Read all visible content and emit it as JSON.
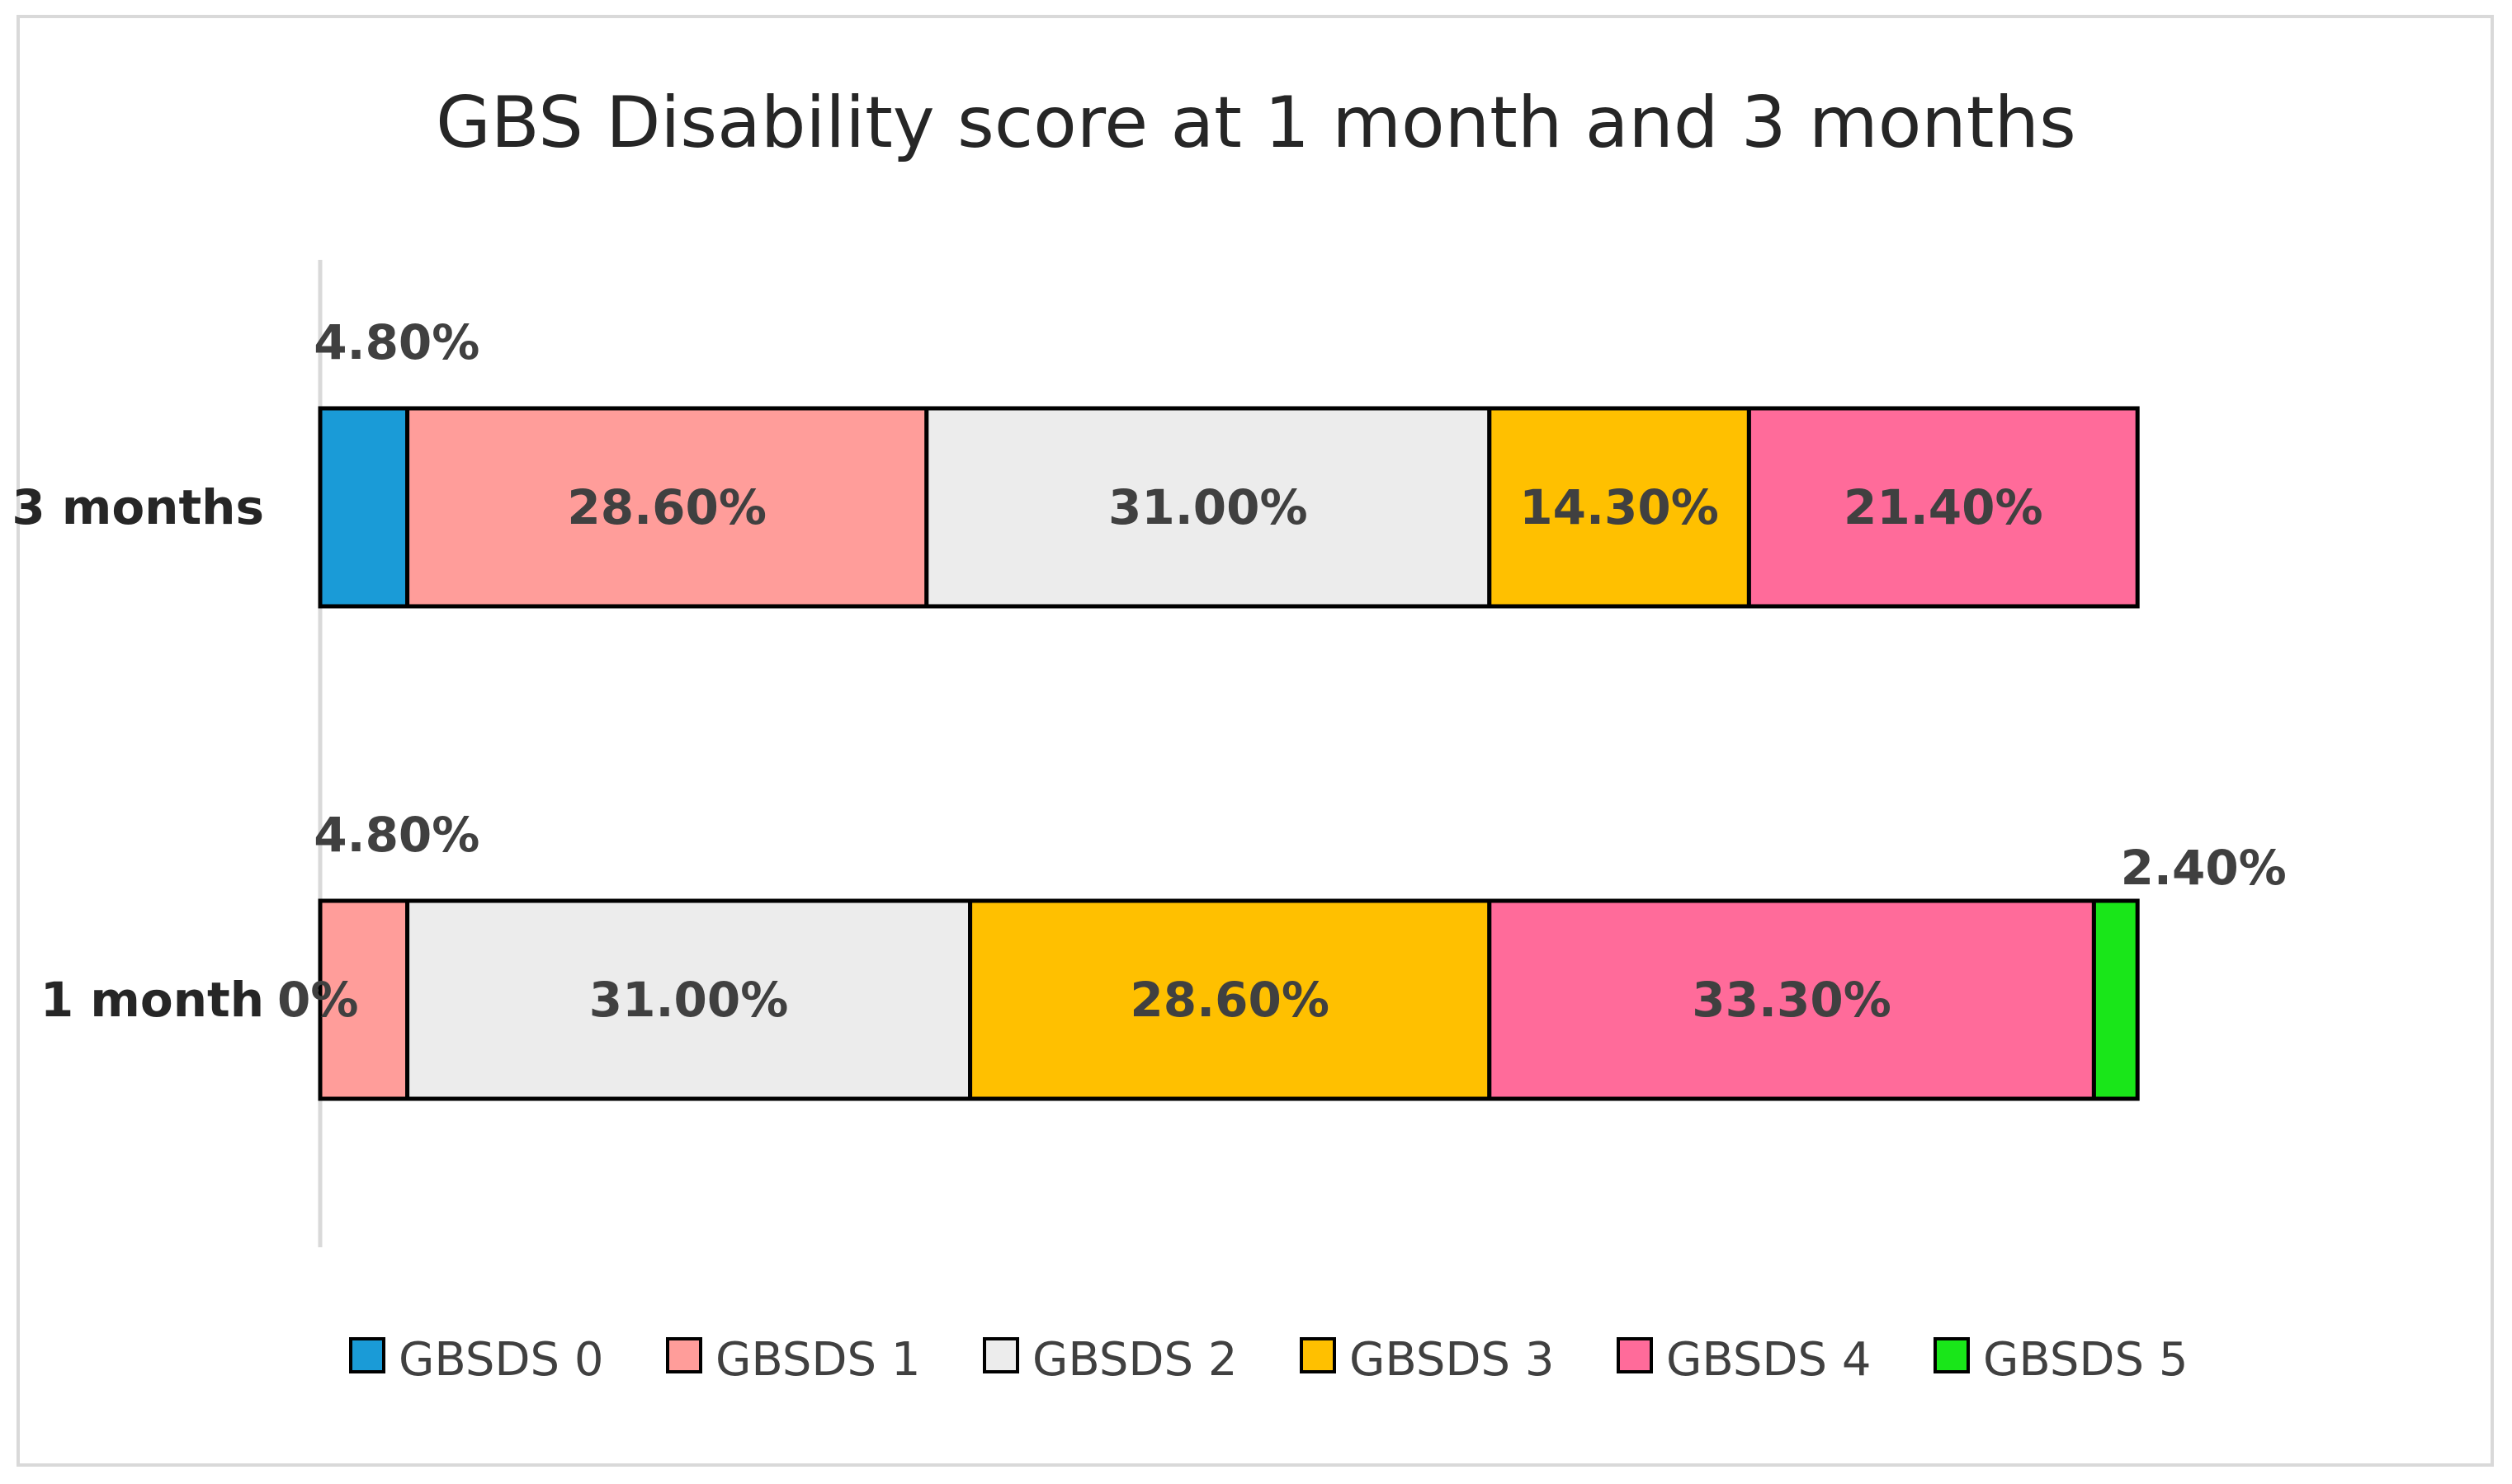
{
  "chart_data": {
    "type": "bar",
    "orientation": "horizontal",
    "stacked": true,
    "title": "GBS Disability score at 1 month and 3 months",
    "categories": [
      "3 months",
      "1 month"
    ],
    "series": [
      {
        "name": "GBSDS 0",
        "color": "#1a9bd7",
        "values": [
          4.8,
          0
        ],
        "labels": [
          "4.80%",
          "0%"
        ]
      },
      {
        "name": "GBSDS 1",
        "color": "#ff9d9a",
        "values": [
          28.6,
          4.8
        ],
        "labels": [
          "28.60%",
          "4.80%"
        ]
      },
      {
        "name": "GBSDS 2",
        "color": "#ececec",
        "values": [
          31.0,
          31.0
        ],
        "labels": [
          "31.00%",
          "31.00%"
        ]
      },
      {
        "name": "GBSDS 3",
        "color": "#ffc000",
        "values": [
          14.3,
          28.6
        ],
        "labels": [
          "14.30%",
          "28.60%"
        ]
      },
      {
        "name": "GBSDS 4",
        "color": "#ff6b9a",
        "values": [
          21.4,
          33.3
        ],
        "labels": [
          "21.40%",
          "33.30%"
        ]
      },
      {
        "name": "GBSDS 5",
        "color": "#19e619",
        "values": [
          0,
          2.4
        ],
        "labels": [
          "",
          "2.40%"
        ]
      }
    ],
    "xlim": [
      0,
      100
    ],
    "legend": "bottom",
    "grid": false
  }
}
